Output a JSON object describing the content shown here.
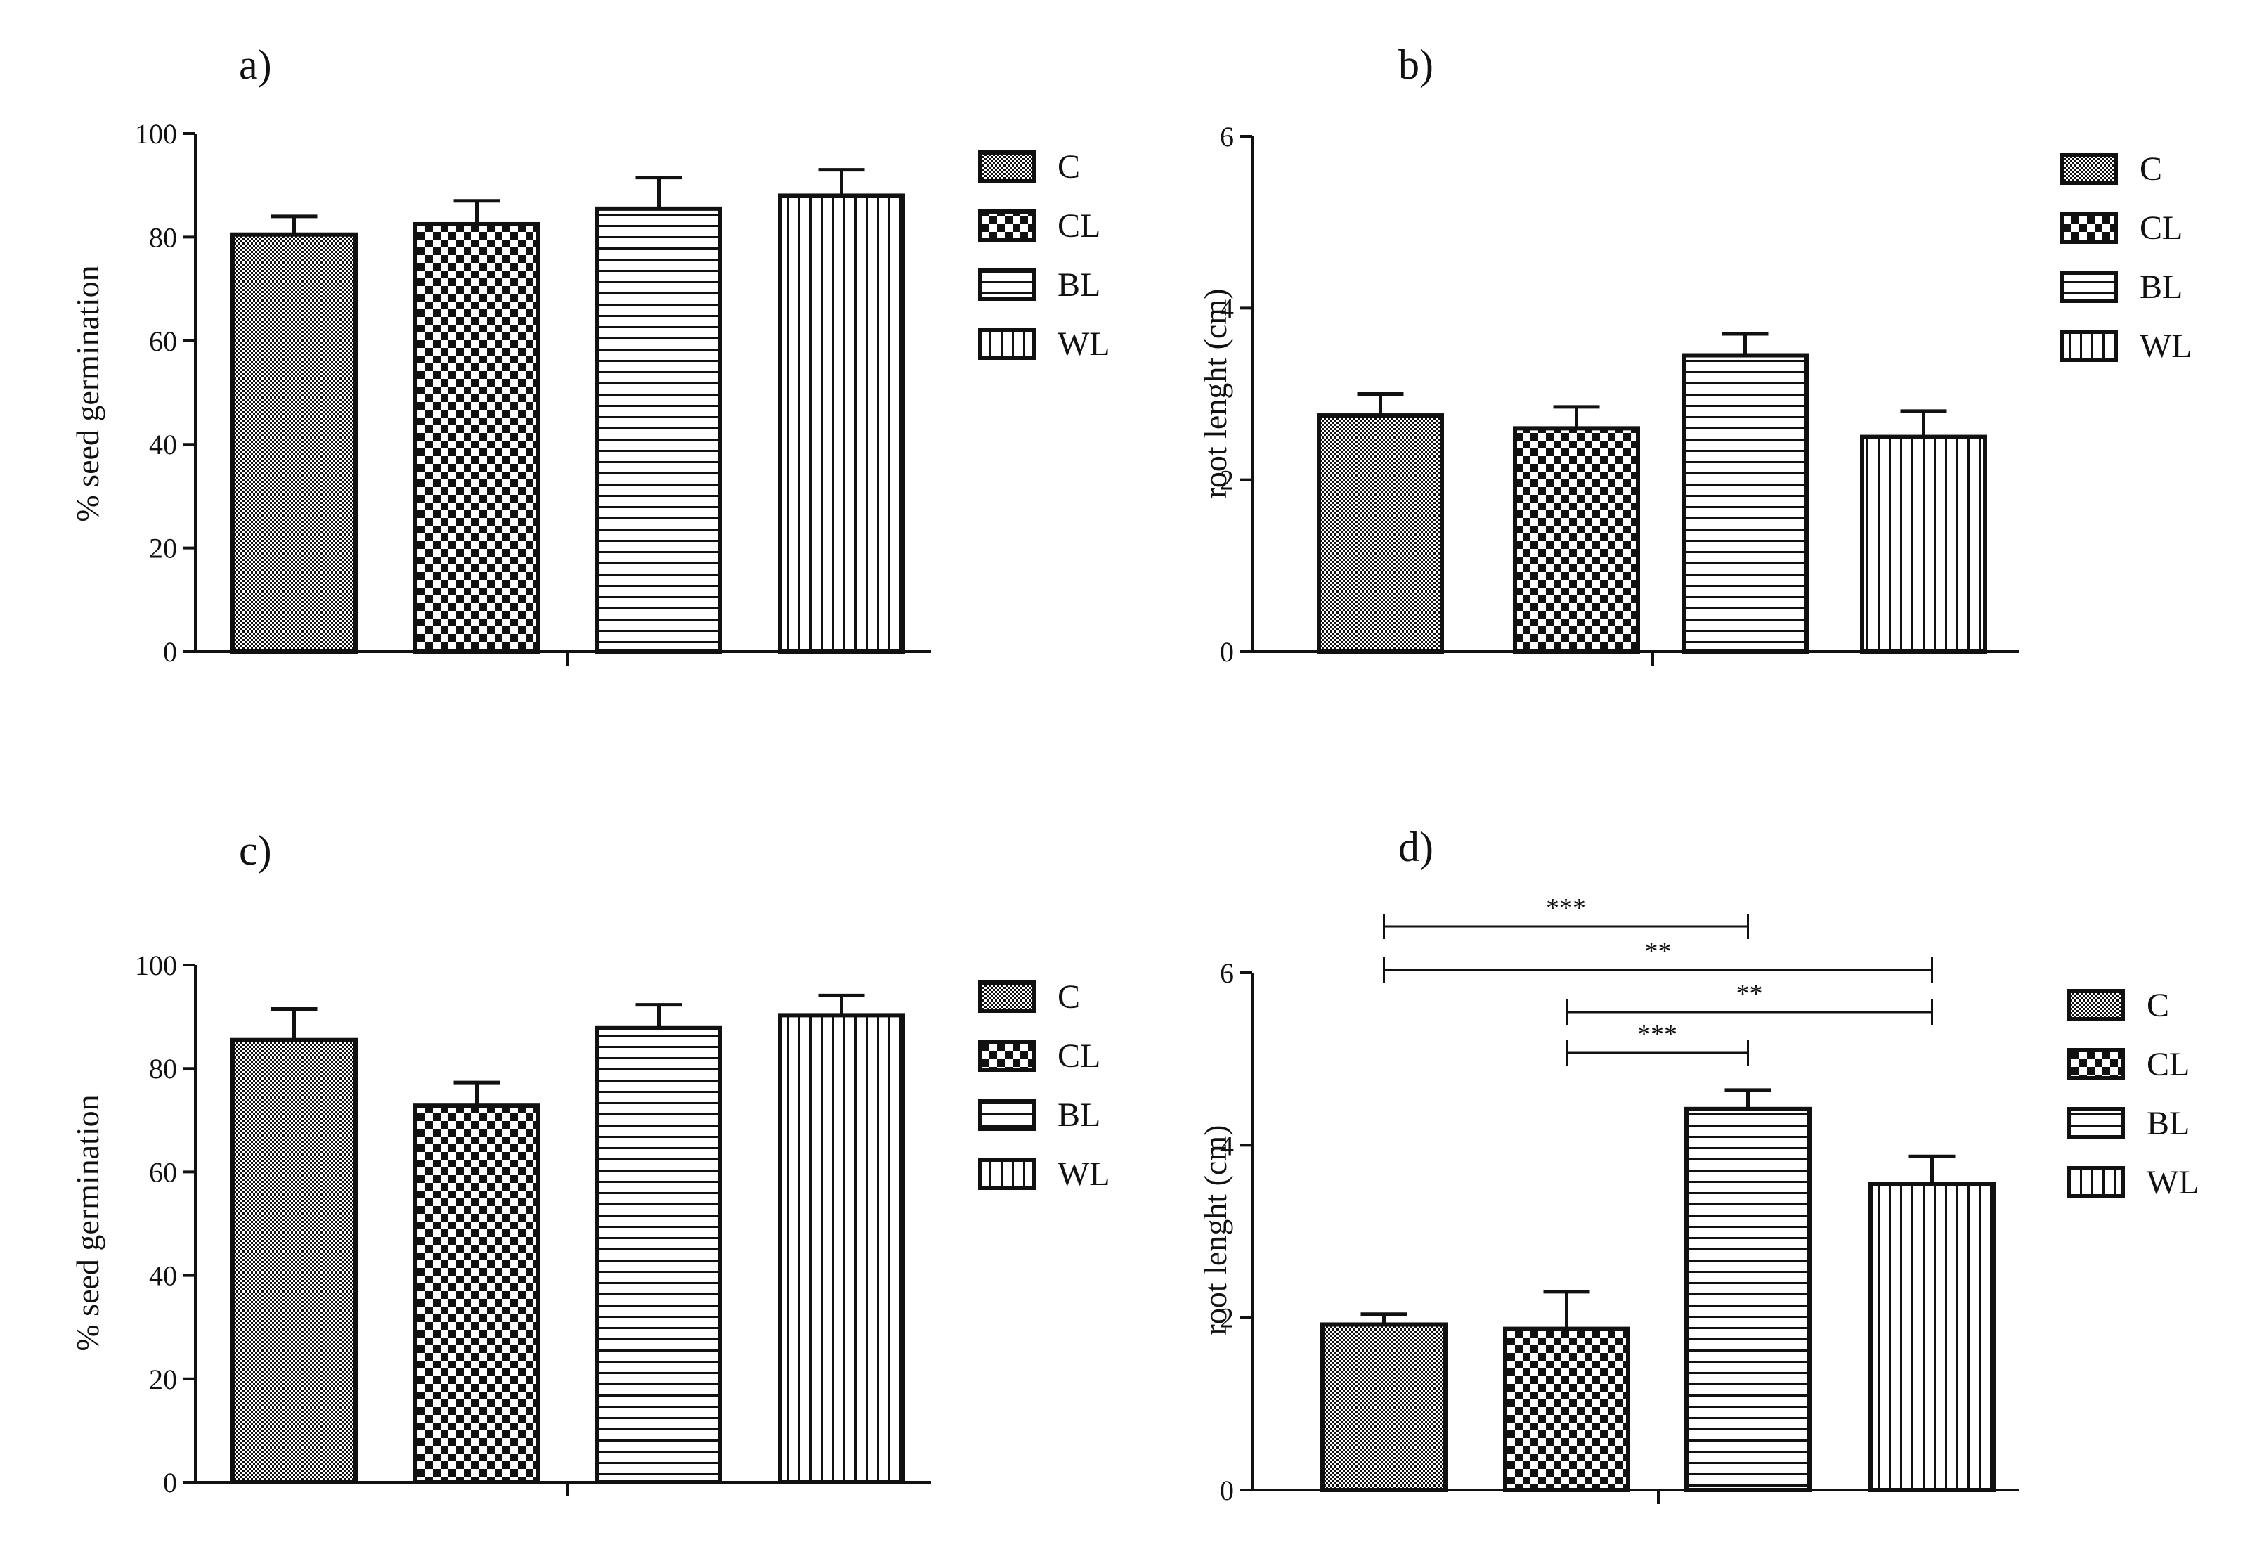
{
  "figure": {
    "background": "#ffffff",
    "ink": "#111111"
  },
  "chart_data": [
    {
      "type": "bar",
      "panel_label": "a)",
      "categories": [
        "C",
        "CL",
        "BL",
        "WL"
      ],
      "values": [
        80.5,
        82.5,
        85.5,
        88.0
      ],
      "errors": [
        3.5,
        4.5,
        6.0,
        5.0
      ],
      "ylabel": "% seed germination",
      "xlabel": "",
      "ylim": [
        0,
        100
      ],
      "yticks": [
        0,
        20,
        40,
        60,
        80,
        100
      ],
      "legend": [
        "C",
        "CL",
        "BL",
        "WL"
      ],
      "legend_position": "right",
      "significance": []
    },
    {
      "type": "bar",
      "panel_label": "b)",
      "categories": [
        "C",
        "CL",
        "BL",
        "WL"
      ],
      "values": [
        2.75,
        2.6,
        3.45,
        2.5
      ],
      "errors": [
        0.25,
        0.25,
        0.25,
        0.3
      ],
      "ylabel": "root lenght (cm)",
      "xlabel": "",
      "ylim": [
        0,
        6
      ],
      "yticks": [
        0,
        2,
        4,
        6
      ],
      "legend": [
        "C",
        "CL",
        "BL",
        "WL"
      ],
      "legend_position": "right",
      "significance": []
    },
    {
      "type": "bar",
      "panel_label": "c)",
      "categories": [
        "C",
        "CL",
        "BL",
        "WL"
      ],
      "values": [
        85.5,
        72.8,
        87.8,
        90.3
      ],
      "errors": [
        6.0,
        4.5,
        4.5,
        3.8
      ],
      "ylabel": "% seed germination",
      "xlabel": "",
      "ylim": [
        0,
        100
      ],
      "yticks": [
        0,
        20,
        40,
        60,
        80,
        100
      ],
      "legend": [
        "C",
        "CL",
        "BL",
        "WL"
      ],
      "legend_position": "right",
      "significance": []
    },
    {
      "type": "bar",
      "panel_label": "d)",
      "categories": [
        "C",
        "CL",
        "BL",
        "WL"
      ],
      "values": [
        1.92,
        1.87,
        4.42,
        3.55
      ],
      "errors": [
        0.12,
        0.43,
        0.22,
        0.32
      ],
      "ylabel": "root lenght (cm)",
      "xlabel": "",
      "ylim": [
        0,
        6
      ],
      "yticks": [
        0,
        2,
        4,
        6
      ],
      "legend": [
        "C",
        "CL",
        "BL",
        "WL"
      ],
      "legend_position": "right",
      "significance": [
        {
          "from": "C",
          "to": "BL",
          "label": "***"
        },
        {
          "from": "C",
          "to": "WL",
          "label": "**"
        },
        {
          "from": "CL",
          "to": "WL",
          "label": "**"
        },
        {
          "from": "CL",
          "to": "BL",
          "label": "***"
        }
      ]
    }
  ]
}
